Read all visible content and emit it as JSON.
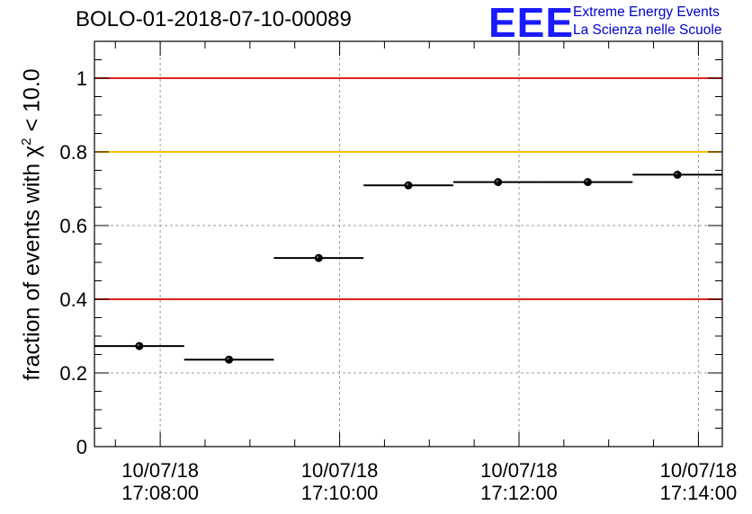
{
  "header": {
    "title": "BOLO-01-2018-07-10-00089",
    "logo_mark": "EEE",
    "logo_line1": "Extreme Energy Events",
    "logo_line2": "La Scienza nelle Scuole"
  },
  "chart_data": {
    "type": "scatter",
    "title": "BOLO-01-2018-07-10-00089",
    "ylabel_prefix": "fraction of events with ",
    "ylabel_symbol": "χ",
    "ylabel_sup": "2",
    "ylabel_suffix": " < 10.0",
    "ylim": [
      0,
      1.1
    ],
    "y_ticks": [
      0,
      0.2,
      0.4,
      0.6,
      0.8,
      1
    ],
    "y_tick_labels": [
      "0",
      "0.2",
      "0.4",
      "0.6",
      "0.8",
      "1"
    ],
    "x_unit": "seconds since 10/07/18 17:08:00",
    "xlim": [
      -44,
      376
    ],
    "x_major_ticks": [
      0,
      120,
      240,
      360
    ],
    "x_tick_labels": [
      [
        "10/07/18",
        "17:08:00"
      ],
      [
        "10/07/18",
        "17:10:00"
      ],
      [
        "10/07/18",
        "17:12:00"
      ],
      [
        "10/07/18",
        "17:14:00"
      ]
    ],
    "grid": true,
    "points": [
      {
        "x_start": -44,
        "x_end": 16,
        "y": 0.273
      },
      {
        "x_start": 16,
        "x_end": 76,
        "y": 0.236
      },
      {
        "x_start": 76,
        "x_end": 136,
        "y": 0.512
      },
      {
        "x_start": 136,
        "x_end": 196,
        "y": 0.709
      },
      {
        "x_start": 196,
        "x_end": 256,
        "y": 0.718
      },
      {
        "x_start": 256,
        "x_end": 316,
        "y": 0.718
      },
      {
        "x_start": 316,
        "x_end": 376,
        "y": 0.738
      }
    ],
    "reference_lines": [
      {
        "y": 1.0,
        "color": "#e02020"
      },
      {
        "y": 0.8,
        "color": "#ffc000"
      },
      {
        "y": 0.4,
        "color": "#e02020"
      }
    ]
  }
}
